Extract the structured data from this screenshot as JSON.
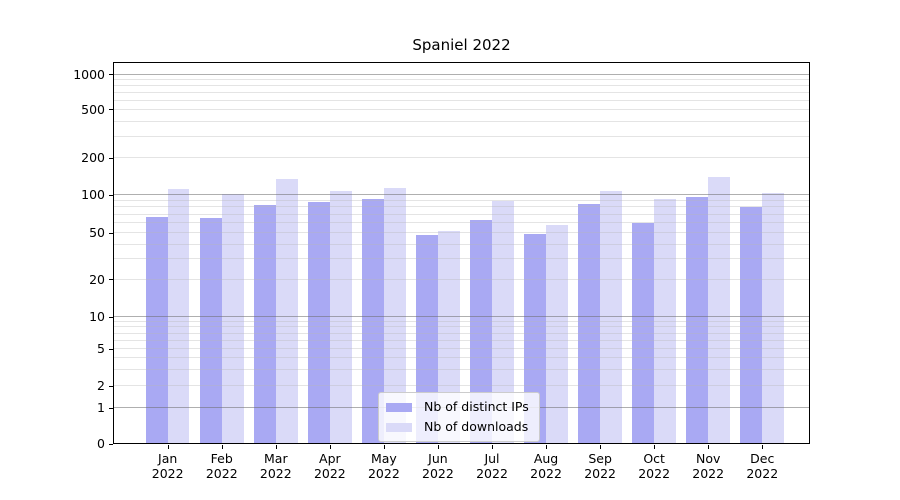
{
  "chart_data": {
    "type": "bar",
    "title": "Spaniel 2022",
    "categories": [
      "Jan",
      "Feb",
      "Mar",
      "Apr",
      "May",
      "Jun",
      "Jul",
      "Aug",
      "Sep",
      "Oct",
      "Nov",
      "Dec"
    ],
    "category_year": "2022",
    "series": [
      {
        "name": "Nb of distinct IPs",
        "color": "#a9a9f3",
        "values": [
          66,
          65,
          82,
          87,
          91,
          47,
          63,
          48,
          83,
          59,
          95,
          79
        ]
      },
      {
        "name": "Nb of downloads",
        "color": "#dadaf8",
        "values": [
          111,
          101,
          132,
          107,
          113,
          51,
          88,
          57,
          107,
          92,
          138,
          103
        ]
      }
    ],
    "yscale": "symlog (log above 1, 0 at baseline)",
    "y_ticks": [
      1000,
      500,
      200,
      100,
      50,
      20,
      10,
      5,
      2,
      1,
      0
    ],
    "ylim": [
      0,
      1250
    ],
    "xlabel": "",
    "ylabel": "",
    "grid": "horizontal major and minor gridlines",
    "legend_position": "lower center"
  },
  "colors": {
    "grid_major": "#b0b0b0",
    "grid_minor": "#e6e6e6",
    "spine": "#000000",
    "background": "#ffffff"
  }
}
